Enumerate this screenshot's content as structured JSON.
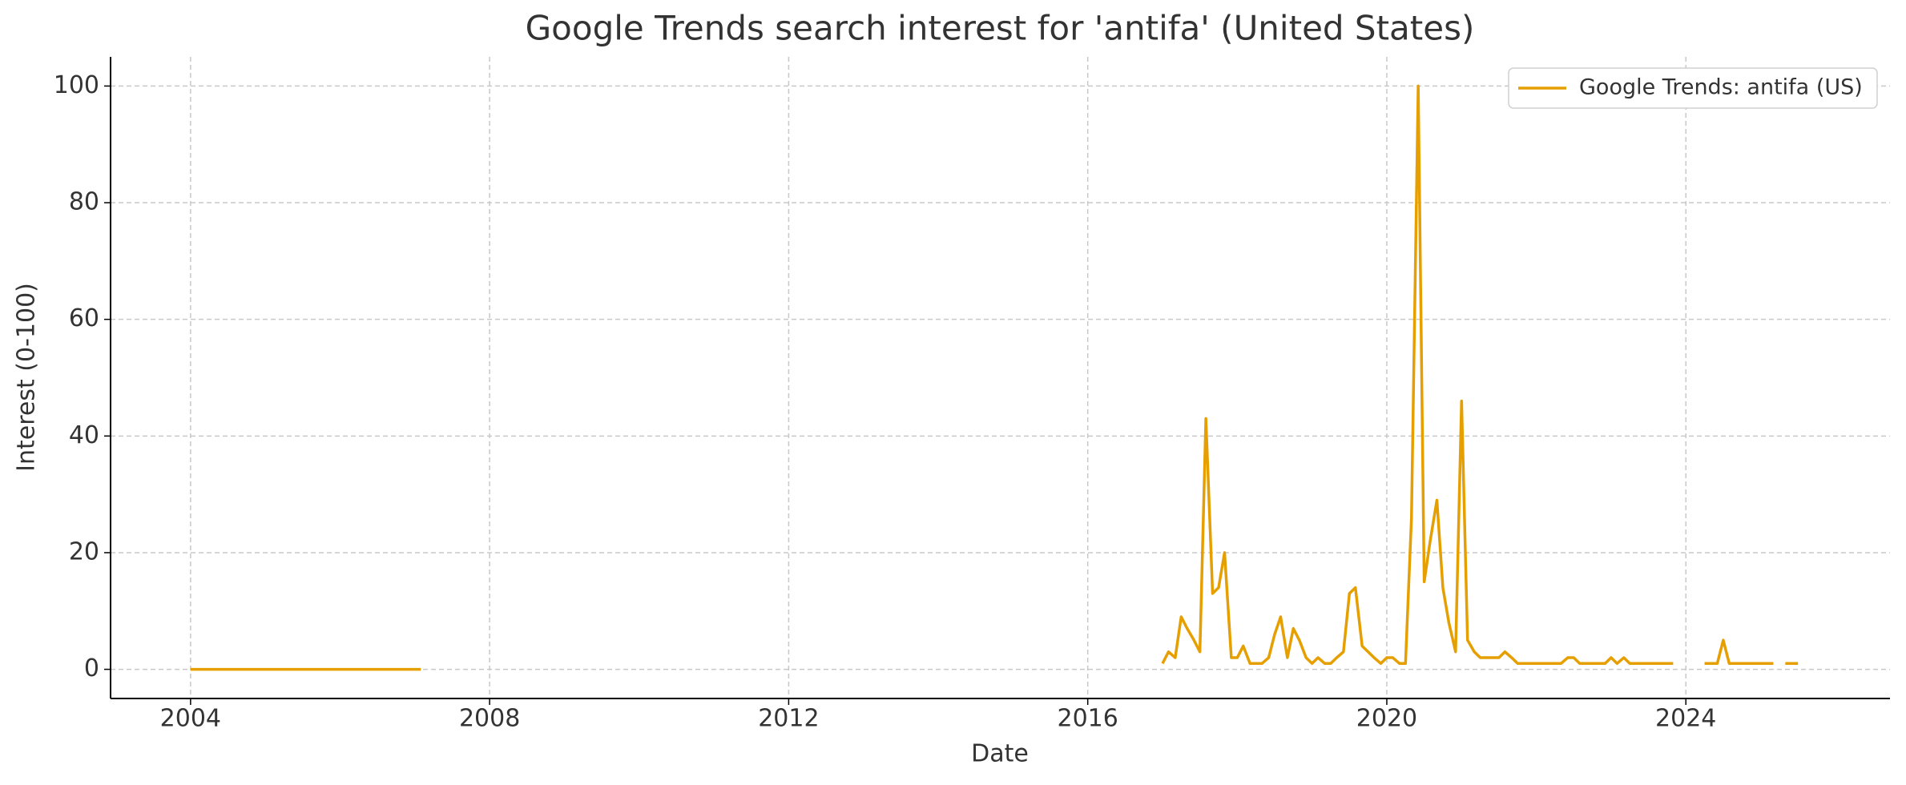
{
  "chart_data": {
    "type": "line",
    "title": "Google Trends search interest for 'antifa' (United States)",
    "xlabel": "Date",
    "ylabel": "Interest (0-100)",
    "x": [
      2004,
      2005,
      2006,
      2007,
      2007.08,
      2012,
      2017.0,
      2017.08,
      2017.17,
      2017.25,
      2017.33,
      2017.42,
      2017.5,
      2017.58,
      2017.67,
      2017.75,
      2017.83,
      2017.92,
      2018.0,
      2018.08,
      2018.17,
      2018.25,
      2018.33,
      2018.42,
      2018.5,
      2018.58,
      2018.67,
      2018.75,
      2018.83,
      2018.92,
      2019.0,
      2019.08,
      2019.17,
      2019.25,
      2019.33,
      2019.42,
      2019.5,
      2019.58,
      2019.67,
      2019.75,
      2019.83,
      2019.92,
      2020.0,
      2020.08,
      2020.17,
      2020.25,
      2020.33,
      2020.42,
      2020.5,
      2020.58,
      2020.67,
      2020.75,
      2020.83,
      2020.92,
      2021.0,
      2021.08,
      2021.17,
      2021.25,
      2021.33,
      2021.42,
      2021.5,
      2021.58,
      2021.67,
      2021.75,
      2021.83,
      2021.92,
      2022.0,
      2022.08,
      2022.17,
      2022.25,
      2022.33,
      2022.42,
      2022.5,
      2022.58,
      2022.67,
      2022.75,
      2022.83,
      2022.92,
      2023.0,
      2023.08,
      2023.17,
      2023.25,
      2023.33,
      2023.42,
      2023.5,
      2023.58,
      2023.67,
      2023.75,
      2023.83,
      2024.0,
      2024.25,
      2024.33,
      2024.42,
      2024.5,
      2024.58,
      2024.67,
      2024.75,
      2024.83,
      2024.92,
      2025.0,
      2025.08,
      2025.17,
      2025.25,
      2025.33,
      2025.42,
      2025.5
    ],
    "series": [
      {
        "name": "Google Trends: antifa (US)",
        "color": "#e69f00",
        "values": [
          0,
          0,
          0,
          0,
          0,
          null,
          1,
          3,
          2,
          9,
          7,
          5,
          3,
          43,
          13,
          14,
          20,
          2,
          2,
          4,
          1,
          1,
          1,
          2,
          6,
          9,
          2,
          7,
          5,
          2,
          1,
          2,
          1,
          1,
          2,
          3,
          13,
          14,
          4,
          3,
          2,
          1,
          2,
          2,
          1,
          1,
          26,
          100,
          15,
          22,
          29,
          14,
          8,
          3,
          46,
          5,
          3,
          2,
          2,
          2,
          2,
          3,
          2,
          1,
          1,
          1,
          1,
          1,
          1,
          1,
          1,
          2,
          2,
          1,
          1,
          1,
          1,
          1,
          2,
          1,
          2,
          1,
          1,
          1,
          1,
          1,
          1,
          1,
          1,
          null,
          1,
          1,
          1,
          5,
          1,
          1,
          1,
          1,
          1,
          1,
          1,
          1,
          null,
          1,
          1,
          1
        ]
      }
    ],
    "xlim": [
      2002.93,
      2026.73
    ],
    "xticks": [
      2004,
      2008,
      2012,
      2016,
      2020,
      2024
    ],
    "ylim": [
      -5,
      105
    ],
    "yticks": [
      0,
      20,
      40,
      60,
      80,
      100
    ],
    "grid": true,
    "legend": "upper right"
  }
}
